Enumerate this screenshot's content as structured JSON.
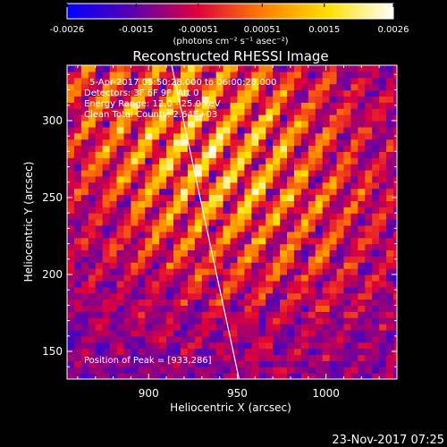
{
  "chart_data": {
    "type": "heatmap",
    "title": "Reconstructed RHESSI Image",
    "xlabel": "Heliocentric X (arcsec)",
    "ylabel": "Heliocentric Y (arcsec)",
    "xlim": [
      854,
      1040
    ],
    "ylim": [
      132,
      336
    ],
    "x_ticks": [
      900,
      950,
      1000
    ],
    "y_ticks": [
      150,
      200,
      250,
      300
    ],
    "colorbar": {
      "min": -0.0026,
      "max": 0.0026,
      "tick_values": [
        -0.0026,
        -0.0015,
        -0.00051,
        0.00051,
        0.0015,
        0.0026
      ],
      "tick_labels": [
        "-0.0026",
        "-0.0015",
        "-0.00051",
        "0.00051",
        "0.0015",
        "0.0026"
      ],
      "unit_label": "(photons cm⁻² s⁻¹ asec⁻²)",
      "colormap": [
        "#0000ff",
        "#5a00b0",
        "#e0003a",
        "#ff7f00",
        "#ffe000",
        "#ffffff"
      ]
    },
    "annotations": [
      "5-Apr-2017 05:50:28.000 to 06:00:28.000",
      "Detectors: 3F 6F 9F, Att 0",
      "Energy Range: 12.0 - 25.0 keV",
      "Clean     Total Counts: 2.64E+03"
    ],
    "peak_label": "Position of Peak = [933,286]",
    "peak": [
      933,
      286
    ],
    "limb_line": [
      [
        913,
        336
      ],
      [
        951,
        132
      ]
    ],
    "source_center": [
      935,
      280
    ],
    "pixel_size_arcsec": 4
  },
  "footer": {
    "timestamp": "23-Nov-2017 07:25"
  }
}
